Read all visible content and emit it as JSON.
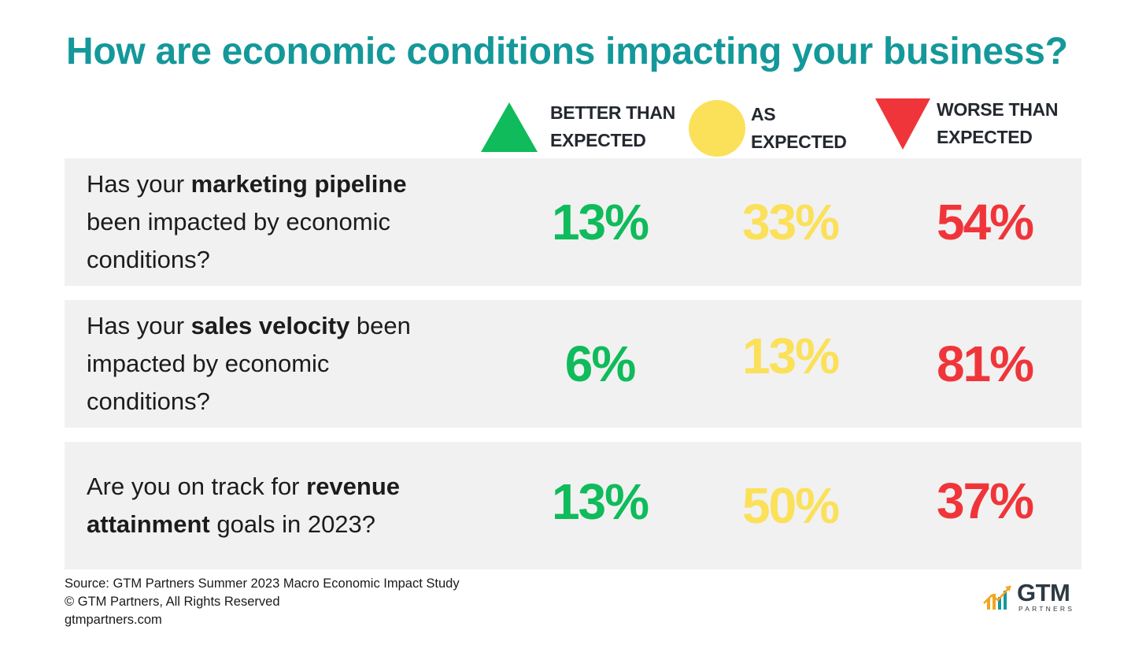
{
  "title": "How are economic conditions impacting your business?",
  "legend": [
    {
      "line1": "BETTER THAN",
      "line2": "EXPECTED",
      "icon": "triangle-up-icon",
      "color": "#0fbb5b"
    },
    {
      "line1": "AS",
      "line2": "EXPECTED",
      "icon": "circle-icon",
      "color": "#fbe05a"
    },
    {
      "line1": "WORSE THAN",
      "line2": "EXPECTED",
      "icon": "triangle-down-icon",
      "color": "#f0353a"
    }
  ],
  "colors": {
    "better": "#0fbb5b",
    "as_expected": "#fbe05a",
    "worse": "#f0353a",
    "title": "#14989a",
    "row_bg": "#f1f1f1"
  },
  "questions": [
    {
      "parts": [
        {
          "t": "Has your ",
          "b": false
        },
        {
          "t": "marketing pipeline",
          "b": true
        },
        {
          "t": " been impacted by economic conditions?",
          "b": false
        }
      ]
    },
    {
      "parts": [
        {
          "t": "Has your ",
          "b": false
        },
        {
          "t": "sales velocity",
          "b": true
        },
        {
          "t": " been impacted by economic conditions?",
          "b": false
        }
      ]
    },
    {
      "parts": [
        {
          "t": "Are you on track for ",
          "b": false
        },
        {
          "t": "revenue attainment",
          "b": true
        },
        {
          "t": " goals in 2023?",
          "b": false
        }
      ]
    }
  ],
  "chart_data": {
    "type": "table",
    "title": "How are economic conditions impacting your business?",
    "columns": [
      "BETTER THAN EXPECTED",
      "AS EXPECTED",
      "WORSE THAN EXPECTED"
    ],
    "rows": [
      "Has your marketing pipeline been impacted by economic conditions?",
      "Has your sales velocity been impacted by economic conditions?",
      "Are you on track for revenue attainment goals in 2023?"
    ],
    "values": [
      [
        13,
        33,
        54
      ],
      [
        6,
        13,
        81
      ],
      [
        13,
        50,
        37
      ]
    ],
    "value_labels": [
      [
        "13%",
        "33%",
        "54%"
      ],
      [
        "6%",
        "13%",
        "81%"
      ],
      [
        "13%",
        "50%",
        "37%"
      ]
    ],
    "unit": "%"
  },
  "footer": {
    "source": "Source: GTM Partners Summer 2023 Macro Economic Impact Study",
    "copyright": "© GTM Partners, All Rights Reserved",
    "website": "gtmpartners.com"
  },
  "logo": {
    "main": "GTM",
    "sub": "PARTNERS"
  }
}
